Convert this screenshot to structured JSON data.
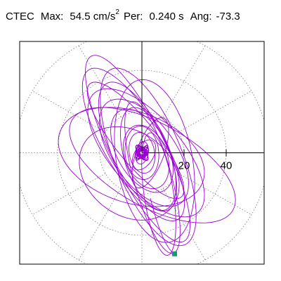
{
  "header": {
    "station": "CTEC",
    "max_label": "Max:",
    "max_value": "54.5 cm/s",
    "max_exp": "2",
    "per_label": "Per:",
    "per_value": "0.240 s",
    "ang_label": "Ang:",
    "ang_value": "-73.3"
  },
  "chart_data": {
    "type": "line",
    "title": "CTEC  Max: 54.5 cm/s2  Per: 0.240 s  Ang: -73.3",
    "xlabel": "",
    "ylabel": "",
    "tick_labels": [
      "20",
      "40"
    ],
    "rings": [
      20,
      40,
      60
    ],
    "spokes_deg": [
      0,
      30,
      60,
      90,
      120,
      150,
      180,
      210,
      240,
      270,
      300,
      330
    ],
    "xlim": [
      -58,
      58
    ],
    "ylim": [
      -54,
      54
    ],
    "grid": "polar-dotted",
    "colors": {
      "trace": "#9a00d4",
      "endpoint": "#179a74",
      "grid": "#7a7a7a",
      "axis": "#000000"
    },
    "endpoint": [
      15.5,
      -49
    ],
    "series": [
      {
        "loops": [
          {
            "cx": 0.0,
            "cy": 0.0,
            "a": 5.5,
            "b": 3.0,
            "rot": 80
          },
          {
            "cx": 1.0,
            "cy": -1.0,
            "a": 8.0,
            "b": 4.5,
            "rot": 60
          },
          {
            "cx": 0.0,
            "cy": 0.0,
            "a": 10.0,
            "b": 6.0,
            "rot": 100
          },
          {
            "cx": 0.0,
            "cy": 0.0,
            "a": 13.0,
            "b": 8.0,
            "rot": 95
          },
          {
            "cx": 2.0,
            "cy": -2.0,
            "a": 16.0,
            "b": 10.0,
            "rot": 110
          },
          {
            "cx": 4.0,
            "cy": 0.0,
            "a": 18.0,
            "b": 6.5,
            "rot": 70
          },
          {
            "cx": 0.0,
            "cy": 1.0,
            "a": 22.0,
            "b": 12.0,
            "rot": 118
          },
          {
            "cx": 3.0,
            "cy": -3.0,
            "a": 26.0,
            "b": 11.0,
            "rot": 108
          },
          {
            "cx": 1.0,
            "cy": 0.0,
            "a": 30.0,
            "b": 15.0,
            "rot": 125
          },
          {
            "cx": -2.0,
            "cy": 3.0,
            "a": 34.0,
            "b": 13.0,
            "rot": 115
          },
          {
            "cx": 2.0,
            "cy": 0.0,
            "a": 38.0,
            "b": 17.0,
            "rot": 130
          },
          {
            "cx": -4.0,
            "cy": 4.0,
            "a": 42.0,
            "b": 14.0,
            "rot": 120
          },
          {
            "cx": 3.0,
            "cy": -2.0,
            "a": 46.0,
            "b": 16.0,
            "rot": 112
          },
          {
            "cx": -2.0,
            "cy": 2.0,
            "a": 50.0,
            "b": 13.0,
            "rot": 116
          },
          {
            "cx": 5.0,
            "cy": -6.0,
            "a": 44.0,
            "b": 20.0,
            "rot": 150
          },
          {
            "cx": -5.0,
            "cy": -2.0,
            "a": 36.0,
            "b": 22.0,
            "rot": 160
          },
          {
            "cx": 6.0,
            "cy": -4.0,
            "a": 40.0,
            "b": 18.0,
            "rot": 100
          },
          {
            "cx": -3.0,
            "cy": 6.0,
            "a": 35.0,
            "b": 10.0,
            "rot": 128
          },
          {
            "cx": 5.0,
            "cy": -12.0,
            "a": 38.0,
            "b": 9.0,
            "rot": 105
          },
          {
            "cx": 8.0,
            "cy": -20.0,
            "a": 30.0,
            "b": 7.0,
            "rot": 98
          },
          {
            "cx": -6.0,
            "cy": -10.0,
            "a": 26.0,
            "b": 20.0,
            "rot": 140
          }
        ]
      }
    ]
  }
}
